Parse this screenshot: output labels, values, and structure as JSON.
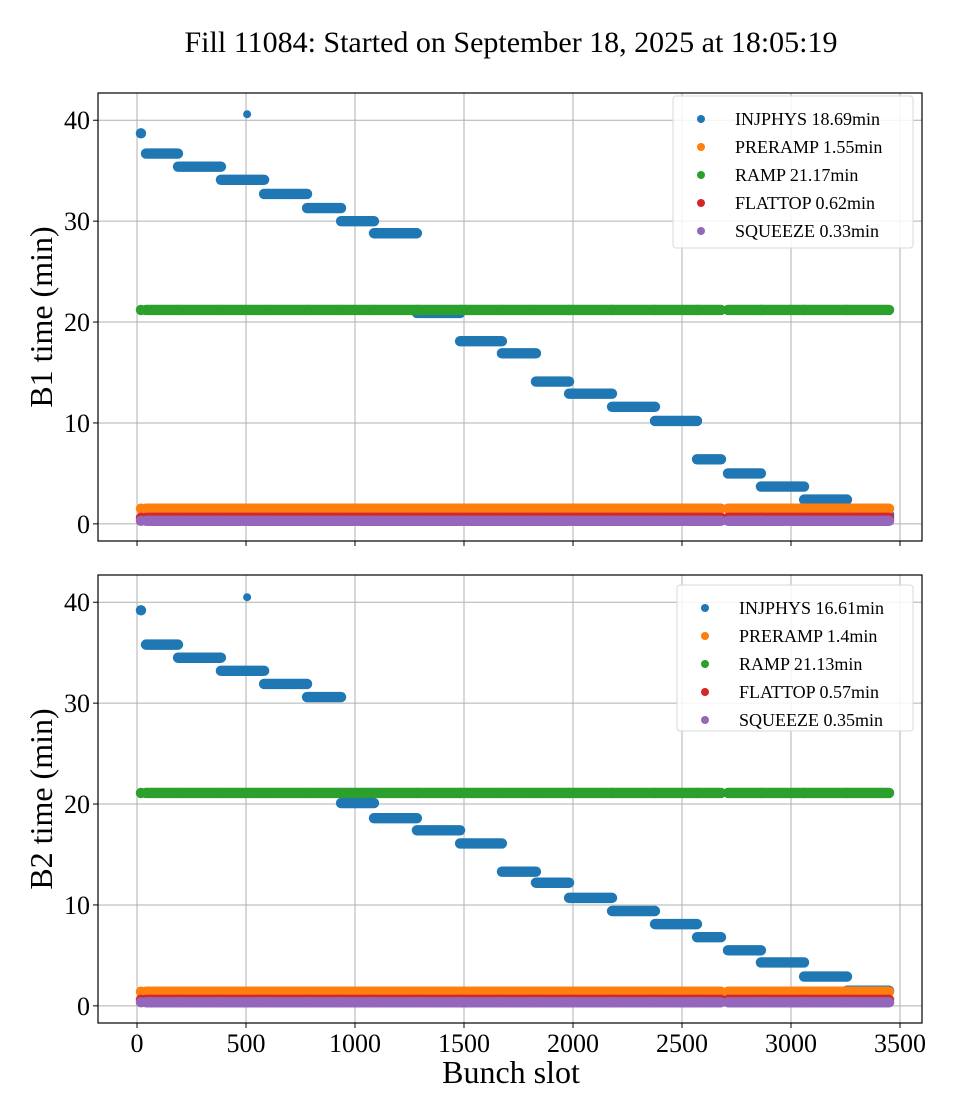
{
  "chart_data": {
    "type": "scatter",
    "title": "Fill 11084: Started on September 18, 2025 at 18:05:19",
    "xlabel": "Bunch slot",
    "xlim": [
      -179,
      3601
    ],
    "xticks": [
      0,
      500,
      1000,
      1500,
      2000,
      2500,
      3000,
      3500
    ],
    "xtick_labels": [
      "0",
      "500",
      "1000",
      "1500",
      "2000",
      "2500",
      "3000",
      "3500"
    ],
    "grid": true,
    "legend_position": "top-right",
    "colors": {
      "INJPHYS": "#1f77b4",
      "PRERAMP": "#ff7f0e",
      "RAMP": "#2ca02c",
      "FLATTOP": "#d62728",
      "SQUEEZE": "#9467bd"
    },
    "bunch_segments": [
      [
        18,
        18
      ],
      [
        41,
        188
      ],
      [
        188,
        385
      ],
      [
        385,
        583
      ],
      [
        583,
        780
      ],
      [
        780,
        936
      ],
      [
        936,
        1087
      ],
      [
        1087,
        1284
      ],
      [
        1284,
        1482
      ],
      [
        1482,
        1674
      ],
      [
        1674,
        1830
      ],
      [
        1830,
        1982
      ],
      [
        1982,
        2179
      ],
      [
        2179,
        2376
      ],
      [
        2376,
        2569
      ],
      [
        2569,
        2679
      ],
      [
        2711,
        2862
      ],
      [
        2862,
        3060
      ],
      [
        3060,
        3257
      ],
      [
        3257,
        3450
      ]
    ],
    "panels": [
      {
        "ylabel": "B1 time (min)",
        "ylim": [
          -1.7,
          42.7
        ],
        "yticks": [
          0,
          10,
          20,
          30,
          40
        ],
        "ytick_labels": [
          "0",
          "10",
          "20",
          "30",
          "40"
        ],
        "legend": [
          {
            "name": "INJPHYS",
            "label": "INJPHYS 18.69min"
          },
          {
            "name": "PRERAMP",
            "label": "PRERAMP 1.55min"
          },
          {
            "name": "RAMP",
            "label": "RAMP 21.17min"
          },
          {
            "name": "FLATTOP",
            "label": "FLATTOP 0.62min"
          },
          {
            "name": "SQUEEZE",
            "label": "SQUEEZE 0.33min"
          }
        ],
        "series": [
          {
            "name": "INJPHYS",
            "segment_values": [
              38.7,
              36.7,
              35.4,
              34.1,
              32.7,
              31.3,
              30.0,
              28.8,
              20.9,
              18.1,
              16.9,
              14.1,
              12.9,
              11.6,
              10.2,
              6.4,
              5.0,
              3.7,
              2.4,
              0.9
            ],
            "outliers": [
              {
                "x": 505,
                "y": 40.6
              }
            ]
          },
          {
            "name": "PRERAMP",
            "value": 1.5
          },
          {
            "name": "RAMP",
            "value": 21.2
          },
          {
            "name": "FLATTOP",
            "value": 0.6
          },
          {
            "name": "SQUEEZE",
            "value": 0.3
          }
        ]
      },
      {
        "ylabel": "B2 time (min)",
        "ylim": [
          -1.7,
          42.7
        ],
        "yticks": [
          0,
          10,
          20,
          30,
          40
        ],
        "ytick_labels": [
          "0",
          "10",
          "20",
          "30",
          "40"
        ],
        "legend": [
          {
            "name": "INJPHYS",
            "label": "INJPHYS 16.61min"
          },
          {
            "name": "PRERAMP",
            "label": "PRERAMP 1.4min"
          },
          {
            "name": "RAMP",
            "label": "RAMP 21.13min"
          },
          {
            "name": "FLATTOP",
            "label": "FLATTOP 0.57min"
          },
          {
            "name": "SQUEEZE",
            "label": "SQUEEZE 0.35min"
          }
        ],
        "series": [
          {
            "name": "INJPHYS",
            "segment_values": [
              39.2,
              35.8,
              34.5,
              33.2,
              31.9,
              30.6,
              20.1,
              18.6,
              17.4,
              16.1,
              13.3,
              12.2,
              10.7,
              9.4,
              8.1,
              6.8,
              5.5,
              4.3,
              2.9,
              1.5
            ],
            "outliers": [
              {
                "x": 505,
                "y": 40.5
              }
            ]
          },
          {
            "name": "PRERAMP",
            "value": 1.4
          },
          {
            "name": "RAMP",
            "value": 21.1
          },
          {
            "name": "FLATTOP",
            "value": 0.6
          },
          {
            "name": "SQUEEZE",
            "value": 0.35
          }
        ]
      }
    ]
  }
}
